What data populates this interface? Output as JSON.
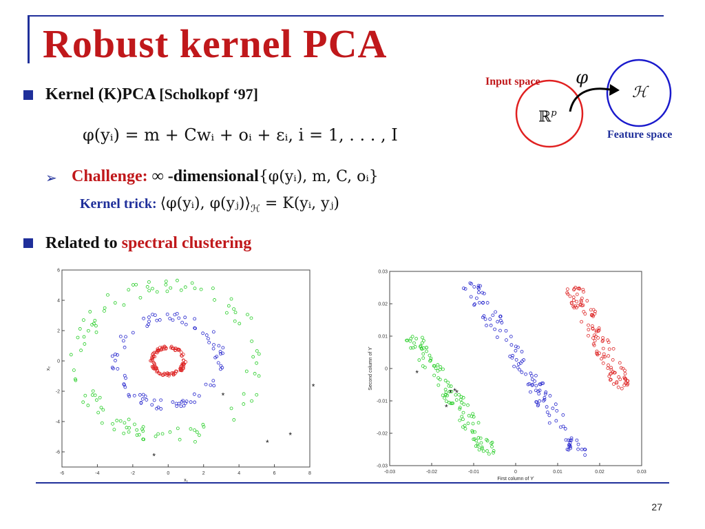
{
  "slide": {
    "title": "Robust kernel PCA",
    "page_number": "27"
  },
  "bullets": {
    "b1_prefix": "Kernel (K)PCA ",
    "b1_cite": "[Scholkopf ‘97]",
    "equation": "φ(yᵢ) = m + Cwᵢ + oᵢ + εᵢ,   i = 1, . . . , I",
    "challenge_label": "Challenge:",
    "challenge_text": "∞ -dimensional",
    "challenge_set": "{φ(yᵢ), m, C, oᵢ}",
    "kernel_trick_label": "Kernel trick:",
    "kernel_trick_expr": "⟨φ(yᵢ), φ(yⱼ)⟩",
    "kernel_trick_sub": "ℋ",
    "kernel_trick_rhs": " = K(yᵢ, yⱼ)",
    "b2_prefix": "Related to ",
    "b2_highlight": "spectral clustering"
  },
  "diagram": {
    "input_label": "Input space",
    "input_space": "ℝ",
    "input_sup": "p",
    "map_symbol": "φ",
    "feature_space": "ℋ",
    "feature_label": "Feature space",
    "colors": {
      "input_circle": "#e02020",
      "feature_circle": "#1a1acc"
    }
  },
  "chart_data": [
    {
      "type": "scatter",
      "title": "",
      "xlabel": "x₁",
      "ylabel": "x₂",
      "xlim": [
        -6,
        8
      ],
      "ylim": [
        -7,
        6
      ],
      "xticks": [
        "-6",
        "-4",
        "-2",
        "0",
        "2",
        "4",
        "6",
        "8"
      ],
      "yticks": [
        "-6",
        "-4",
        "-2",
        "0",
        "2",
        "4",
        "6"
      ],
      "series": [
        {
          "color": "#22cc22",
          "marker": "circle",
          "shape": "ring",
          "center": [
            0,
            0
          ],
          "radius": 5.0,
          "count": 110
        },
        {
          "color": "#2222cc",
          "marker": "circle",
          "shape": "ring",
          "center": [
            0,
            0
          ],
          "radius": 2.9,
          "count": 90
        },
        {
          "color": "#dd2222",
          "marker": "circle",
          "shape": "ring",
          "center": [
            0,
            0
          ],
          "radius": 0.9,
          "count": 110
        },
        {
          "color": "#111111",
          "marker": "star",
          "points": [
            [
              -0.8,
              -6.3
            ],
            [
              3.1,
              -2.3
            ],
            [
              5.6,
              -5.4
            ],
            [
              6.9,
              -4.9
            ],
            [
              8.2,
              -1.7
            ]
          ]
        }
      ]
    },
    {
      "type": "scatter",
      "title": "",
      "xlabel": "First column of ϒ",
      "ylabel": "Second column of ϒ",
      "xlim": [
        -0.03,
        0.03
      ],
      "ylim": [
        -0.03,
        0.03
      ],
      "xticks": [
        "-0.03",
        "-0.02",
        "-0.01",
        "0",
        "0.01",
        "0.02",
        "0.03"
      ],
      "yticks": [
        "-0.03",
        "-0.02",
        "-0.01",
        "0",
        "0.01",
        "0.02",
        "0.03"
      ],
      "series": [
        {
          "color": "#22cc22",
          "marker": "circle",
          "shape": "band",
          "from": [
            -0.0245,
            0.01
          ],
          "to": [
            -0.0055,
            -0.027
          ],
          "count": 110
        },
        {
          "color": "#2222cc",
          "marker": "circle",
          "shape": "band",
          "from": [
            -0.011,
            0.0265
          ],
          "to": [
            0.0155,
            -0.0275
          ],
          "count": 120
        },
        {
          "color": "#dd2222",
          "marker": "circle",
          "shape": "band",
          "from": [
            0.0135,
            0.0255
          ],
          "to": [
            0.026,
            -0.0065
          ],
          "count": 115
        },
        {
          "color": "#111111",
          "marker": "star",
          "points": [
            [
              -0.0235,
              -0.0015
            ],
            [
              -0.0155,
              -0.0075
            ],
            [
              -0.0145,
              -0.007
            ],
            [
              -0.014,
              -0.0075
            ],
            [
              -0.0165,
              -0.012
            ]
          ]
        }
      ]
    }
  ]
}
